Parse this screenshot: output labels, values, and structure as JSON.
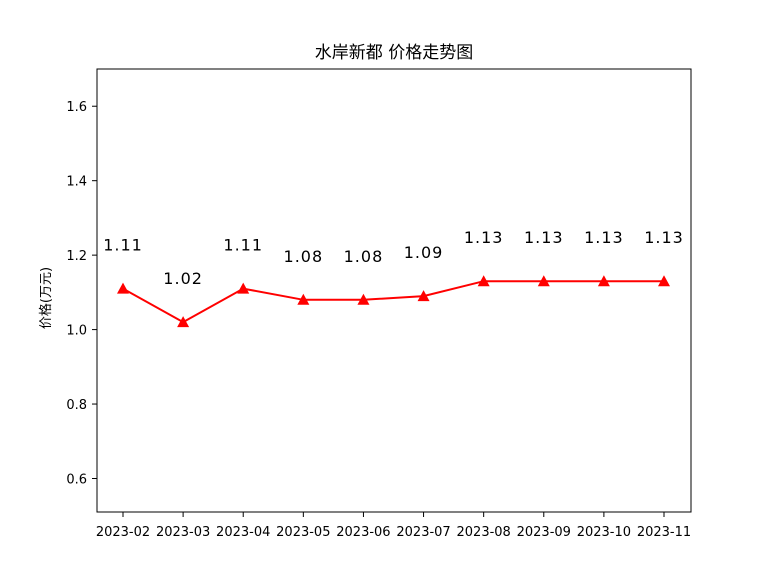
{
  "chart_data": {
    "type": "line",
    "title": "水岸新都 价格走势图",
    "xlabel": "",
    "ylabel": "价格(万元)",
    "categories": [
      "2023-02",
      "2023-03",
      "2023-04",
      "2023-05",
      "2023-06",
      "2023-07",
      "2023-08",
      "2023-09",
      "2023-10",
      "2023-11"
    ],
    "values": [
      1.11,
      1.02,
      1.11,
      1.08,
      1.08,
      1.09,
      1.13,
      1.13,
      1.13,
      1.13
    ],
    "data_labels": [
      "1.11",
      "1.02",
      "1.11",
      "1.08",
      "1.08",
      "1.09",
      "1.13",
      "1.13",
      "1.13",
      "1.13"
    ],
    "ylim": [
      0.51,
      1.7
    ],
    "yticks": [
      "0.6",
      "0.8",
      "1.0",
      "1.2",
      "1.4",
      "1.6"
    ],
    "grid": false,
    "series_color": "#ff0000",
    "marker": "triangle"
  }
}
